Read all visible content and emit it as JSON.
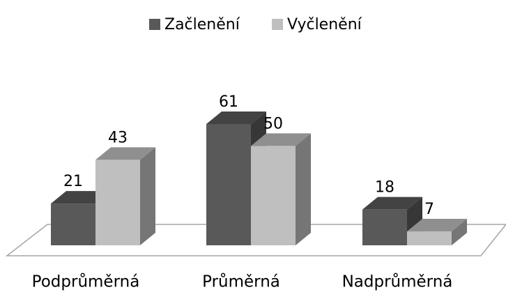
{
  "chart_data": {
    "type": "bar3d",
    "categories": [
      "Podprůměrná",
      "Průměrná",
      "Nadprůměrná"
    ],
    "series": [
      {
        "name": "Začlenění",
        "color": "#595959",
        "values": [
          21,
          61,
          18
        ]
      },
      {
        "name": "Vyčlenění",
        "color": "#bfbfbf",
        "values": [
          43,
          50,
          7
        ]
      }
    ],
    "legend": "top"
  }
}
